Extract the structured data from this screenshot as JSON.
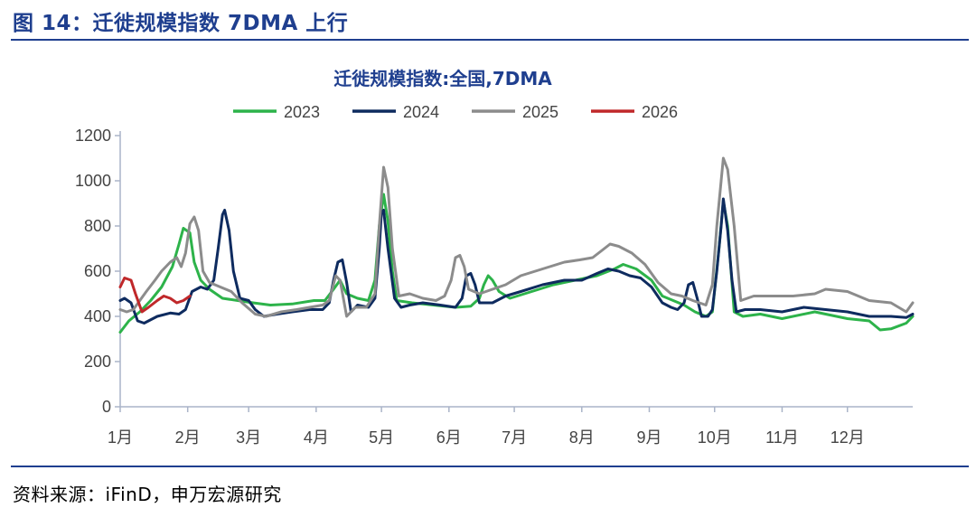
{
  "header": {
    "figure_title": "图 14：迁徙规模指数 7DMA 上行"
  },
  "footer": {
    "source": "资料来源：iFinD，申万宏源研究"
  },
  "colors": {
    "accent": "#1f3f8f",
    "axis": "#aab4c8"
  },
  "chart_data": {
    "type": "line",
    "title": "迁徙规模指数:全国,7DMA",
    "xlabel": "",
    "ylabel": "",
    "ylim": [
      0,
      1200
    ],
    "yticks": [
      0,
      200,
      400,
      600,
      800,
      1000,
      1200
    ],
    "x_unit": "day_of_year",
    "xlim": [
      1,
      365
    ],
    "month_ticks": [
      {
        "label": "1月",
        "day": 1
      },
      {
        "label": "2月",
        "day": 32
      },
      {
        "label": "3月",
        "day": 60
      },
      {
        "label": "4月",
        "day": 91
      },
      {
        "label": "5月",
        "day": 121
      },
      {
        "label": "6月",
        "day": 152
      },
      {
        "label": "7月",
        "day": 182
      },
      {
        "label": "8月",
        "day": 213
      },
      {
        "label": "9月",
        "day": 244
      },
      {
        "label": "10月",
        "day": 274
      },
      {
        "label": "11月",
        "day": 305
      },
      {
        "label": "12月",
        "day": 335
      }
    ],
    "legend_position": "top-center",
    "grid": false,
    "series": [
      {
        "name": "2023",
        "color": "#2db34a",
        "points": [
          [
            1,
            330
          ],
          [
            5,
            380
          ],
          [
            10,
            420
          ],
          [
            15,
            470
          ],
          [
            20,
            530
          ],
          [
            25,
            620
          ],
          [
            28,
            720
          ],
          [
            30,
            790
          ],
          [
            33,
            770
          ],
          [
            35,
            640
          ],
          [
            38,
            560
          ],
          [
            42,
            520
          ],
          [
            48,
            480
          ],
          [
            55,
            470
          ],
          [
            62,
            460
          ],
          [
            70,
            450
          ],
          [
            80,
            455
          ],
          [
            90,
            470
          ],
          [
            95,
            470
          ],
          [
            99,
            520
          ],
          [
            102,
            560
          ],
          [
            105,
            500
          ],
          [
            110,
            480
          ],
          [
            115,
            470
          ],
          [
            118,
            560
          ],
          [
            120,
            800
          ],
          [
            122,
            940
          ],
          [
            124,
            820
          ],
          [
            126,
            600
          ],
          [
            128,
            470
          ],
          [
            135,
            460
          ],
          [
            145,
            450
          ],
          [
            155,
            440
          ],
          [
            162,
            445
          ],
          [
            166,
            480
          ],
          [
            168,
            540
          ],
          [
            170,
            580
          ],
          [
            172,
            560
          ],
          [
            175,
            510
          ],
          [
            180,
            480
          ],
          [
            190,
            510
          ],
          [
            200,
            540
          ],
          [
            210,
            560
          ],
          [
            220,
            580
          ],
          [
            228,
            610
          ],
          [
            232,
            630
          ],
          [
            238,
            610
          ],
          [
            245,
            560
          ],
          [
            250,
            490
          ],
          [
            255,
            470
          ],
          [
            260,
            450
          ],
          [
            265,
            420
          ],
          [
            270,
            400
          ],
          [
            273,
            420
          ],
          [
            276,
            700
          ],
          [
            278,
            910
          ],
          [
            280,
            800
          ],
          [
            283,
            420
          ],
          [
            287,
            400
          ],
          [
            295,
            410
          ],
          [
            305,
            390
          ],
          [
            320,
            420
          ],
          [
            335,
            390
          ],
          [
            345,
            380
          ],
          [
            350,
            340
          ],
          [
            355,
            345
          ],
          [
            362,
            370
          ],
          [
            365,
            400
          ]
        ]
      },
      {
        "name": "2024",
        "color": "#0e2b5f",
        "points": [
          [
            1,
            470
          ],
          [
            3,
            480
          ],
          [
            6,
            460
          ],
          [
            9,
            380
          ],
          [
            12,
            370
          ],
          [
            18,
            400
          ],
          [
            24,
            415
          ],
          [
            28,
            410
          ],
          [
            31,
            430
          ],
          [
            34,
            510
          ],
          [
            38,
            530
          ],
          [
            41,
            520
          ],
          [
            44,
            560
          ],
          [
            46,
            700
          ],
          [
            48,
            850
          ],
          [
            49,
            870
          ],
          [
            51,
            780
          ],
          [
            53,
            600
          ],
          [
            56,
            480
          ],
          [
            60,
            470
          ],
          [
            63,
            430
          ],
          [
            67,
            400
          ],
          [
            73,
            410
          ],
          [
            80,
            420
          ],
          [
            88,
            430
          ],
          [
            94,
            430
          ],
          [
            97,
            460
          ],
          [
            99,
            560
          ],
          [
            101,
            640
          ],
          [
            103,
            650
          ],
          [
            105,
            550
          ],
          [
            107,
            420
          ],
          [
            110,
            450
          ],
          [
            115,
            440
          ],
          [
            118,
            480
          ],
          [
            120,
            700
          ],
          [
            121,
            860
          ],
          [
            122,
            870
          ],
          [
            124,
            700
          ],
          [
            127,
            480
          ],
          [
            130,
            440
          ],
          [
            134,
            450
          ],
          [
            140,
            460
          ],
          [
            148,
            450
          ],
          [
            155,
            440
          ],
          [
            158,
            480
          ],
          [
            160,
            580
          ],
          [
            162,
            590
          ],
          [
            164,
            540
          ],
          [
            166,
            460
          ],
          [
            172,
            460
          ],
          [
            178,
            490
          ],
          [
            185,
            510
          ],
          [
            195,
            540
          ],
          [
            205,
            560
          ],
          [
            213,
            560
          ],
          [
            220,
            590
          ],
          [
            225,
            610
          ],
          [
            230,
            600
          ],
          [
            235,
            580
          ],
          [
            240,
            570
          ],
          [
            245,
            530
          ],
          [
            250,
            460
          ],
          [
            254,
            440
          ],
          [
            257,
            430
          ],
          [
            260,
            460
          ],
          [
            262,
            540
          ],
          [
            264,
            550
          ],
          [
            266,
            480
          ],
          [
            268,
            400
          ],
          [
            271,
            400
          ],
          [
            273,
            430
          ],
          [
            275,
            600
          ],
          [
            277,
            800
          ],
          [
            278,
            920
          ],
          [
            280,
            780
          ],
          [
            282,
            560
          ],
          [
            284,
            420
          ],
          [
            288,
            430
          ],
          [
            295,
            430
          ],
          [
            305,
            420
          ],
          [
            315,
            440
          ],
          [
            325,
            430
          ],
          [
            335,
            420
          ],
          [
            345,
            400
          ],
          [
            355,
            400
          ],
          [
            362,
            395
          ],
          [
            365,
            410
          ]
        ]
      },
      {
        "name": "2025",
        "color": "#8c8c8c",
        "points": [
          [
            1,
            430
          ],
          [
            4,
            420
          ],
          [
            7,
            430
          ],
          [
            10,
            470
          ],
          [
            13,
            510
          ],
          [
            17,
            560
          ],
          [
            20,
            600
          ],
          [
            24,
            640
          ],
          [
            27,
            660
          ],
          [
            29,
            620
          ],
          [
            31,
            680
          ],
          [
            33,
            810
          ],
          [
            35,
            840
          ],
          [
            37,
            780
          ],
          [
            39,
            600
          ],
          [
            42,
            550
          ],
          [
            47,
            530
          ],
          [
            52,
            510
          ],
          [
            57,
            460
          ],
          [
            63,
            410
          ],
          [
            68,
            400
          ],
          [
            75,
            420
          ],
          [
            82,
            430
          ],
          [
            88,
            440
          ],
          [
            94,
            450
          ],
          [
            97,
            470
          ],
          [
            100,
            580
          ],
          [
            102,
            560
          ],
          [
            105,
            400
          ],
          [
            109,
            440
          ],
          [
            114,
            440
          ],
          [
            118,
            500
          ],
          [
            120,
            800
          ],
          [
            122,
            1060
          ],
          [
            124,
            970
          ],
          [
            126,
            700
          ],
          [
            129,
            490
          ],
          [
            134,
            500
          ],
          [
            140,
            480
          ],
          [
            146,
            470
          ],
          [
            150,
            490
          ],
          [
            153,
            560
          ],
          [
            155,
            660
          ],
          [
            157,
            670
          ],
          [
            159,
            620
          ],
          [
            161,
            520
          ],
          [
            166,
            500
          ],
          [
            172,
            520
          ],
          [
            178,
            540
          ],
          [
            185,
            580
          ],
          [
            195,
            610
          ],
          [
            205,
            640
          ],
          [
            212,
            650
          ],
          [
            218,
            660
          ],
          [
            222,
            690
          ],
          [
            226,
            720
          ],
          [
            230,
            710
          ],
          [
            236,
            680
          ],
          [
            242,
            630
          ],
          [
            248,
            550
          ],
          [
            254,
            500
          ],
          [
            259,
            490
          ],
          [
            264,
            470
          ],
          [
            267,
            460
          ],
          [
            270,
            450
          ],
          [
            273,
            540
          ],
          [
            275,
            800
          ],
          [
            277,
            1000
          ],
          [
            278,
            1100
          ],
          [
            280,
            1050
          ],
          [
            283,
            800
          ],
          [
            286,
            470
          ],
          [
            292,
            490
          ],
          [
            300,
            490
          ],
          [
            310,
            490
          ],
          [
            320,
            500
          ],
          [
            325,
            520
          ],
          [
            335,
            510
          ],
          [
            345,
            470
          ],
          [
            355,
            460
          ],
          [
            362,
            420
          ],
          [
            365,
            460
          ]
        ]
      },
      {
        "name": "2026",
        "color": "#c0282a",
        "points": [
          [
            1,
            530
          ],
          [
            3,
            570
          ],
          [
            6,
            560
          ],
          [
            8,
            500
          ],
          [
            11,
            420
          ],
          [
            14,
            440
          ],
          [
            18,
            470
          ],
          [
            21,
            490
          ],
          [
            24,
            480
          ],
          [
            27,
            460
          ],
          [
            30,
            470
          ],
          [
            33,
            490
          ]
        ]
      }
    ]
  }
}
